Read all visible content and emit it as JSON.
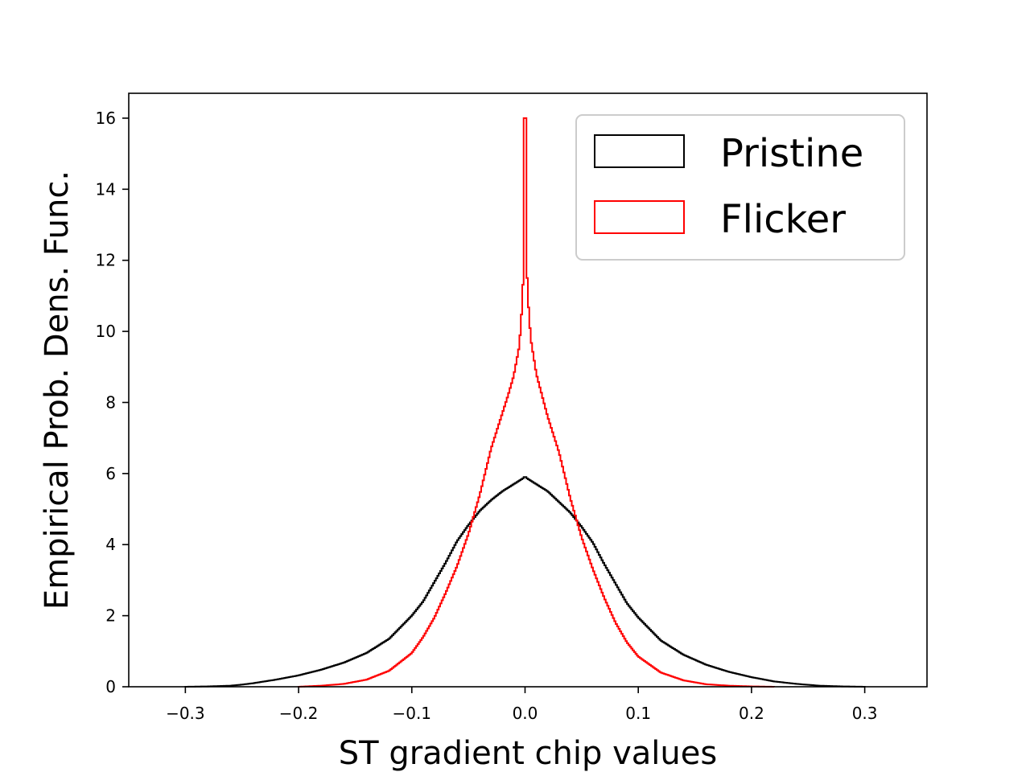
{
  "chart_data": {
    "type": "histogram",
    "xlabel": "ST gradient chip values",
    "ylabel": "Empirical Prob. Dens. Func.",
    "xlim": [
      -0.35,
      0.355
    ],
    "ylim": [
      0,
      16.7
    ],
    "xticks": [
      -0.3,
      -0.2,
      -0.1,
      0.0,
      0.1,
      0.2,
      0.3
    ],
    "xtick_labels": [
      "−0.3",
      "−0.2",
      "−0.1",
      "0.0",
      "0.1",
      "0.2",
      "0.3"
    ],
    "yticks": [
      0,
      2,
      4,
      6,
      8,
      10,
      12,
      14,
      16
    ],
    "ytick_labels": [
      "0",
      "2",
      "4",
      "6",
      "8",
      "10",
      "12",
      "14",
      "16"
    ],
    "legend_position": "top-right",
    "series": [
      {
        "name": "Pristine",
        "color": "#000000",
        "points": [
          [
            -0.3,
            0.0
          ],
          [
            -0.28,
            0.01
          ],
          [
            -0.26,
            0.03
          ],
          [
            -0.25,
            0.06
          ],
          [
            -0.24,
            0.1
          ],
          [
            -0.22,
            0.2
          ],
          [
            -0.2,
            0.32
          ],
          [
            -0.18,
            0.48
          ],
          [
            -0.16,
            0.68
          ],
          [
            -0.14,
            0.95
          ],
          [
            -0.12,
            1.35
          ],
          [
            -0.1,
            2.0
          ],
          [
            -0.09,
            2.4
          ],
          [
            -0.08,
            2.95
          ],
          [
            -0.07,
            3.5
          ],
          [
            -0.06,
            4.1
          ],
          [
            -0.05,
            4.55
          ],
          [
            -0.04,
            4.95
          ],
          [
            -0.03,
            5.25
          ],
          [
            -0.02,
            5.5
          ],
          [
            -0.01,
            5.7
          ],
          [
            -0.005,
            5.8
          ],
          [
            0.0,
            5.9
          ],
          [
            0.005,
            5.8
          ],
          [
            0.01,
            5.7
          ],
          [
            0.02,
            5.5
          ],
          [
            0.03,
            5.2
          ],
          [
            0.04,
            4.9
          ],
          [
            0.05,
            4.5
          ],
          [
            0.06,
            4.05
          ],
          [
            0.07,
            3.45
          ],
          [
            0.08,
            2.9
          ],
          [
            0.09,
            2.35
          ],
          [
            0.1,
            1.95
          ],
          [
            0.12,
            1.3
          ],
          [
            0.14,
            0.9
          ],
          [
            0.16,
            0.62
          ],
          [
            0.18,
            0.42
          ],
          [
            0.2,
            0.27
          ],
          [
            0.22,
            0.15
          ],
          [
            0.24,
            0.08
          ],
          [
            0.26,
            0.03
          ],
          [
            0.28,
            0.01
          ],
          [
            0.3,
            0.0
          ]
        ]
      },
      {
        "name": "Flicker",
        "color": "#ff0000",
        "points": [
          [
            -0.2,
            0.0
          ],
          [
            -0.18,
            0.03
          ],
          [
            -0.16,
            0.08
          ],
          [
            -0.14,
            0.2
          ],
          [
            -0.12,
            0.45
          ],
          [
            -0.1,
            0.95
          ],
          [
            -0.09,
            1.4
          ],
          [
            -0.08,
            1.95
          ],
          [
            -0.07,
            2.65
          ],
          [
            -0.06,
            3.4
          ],
          [
            -0.05,
            4.3
          ],
          [
            -0.04,
            5.4
          ],
          [
            -0.03,
            6.7
          ],
          [
            -0.02,
            7.7
          ],
          [
            -0.015,
            8.2
          ],
          [
            -0.01,
            8.75
          ],
          [
            -0.005,
            9.6
          ],
          [
            -0.002,
            11.0
          ],
          [
            0.0,
            16.0
          ],
          [
            0.002,
            11.2
          ],
          [
            0.005,
            9.8
          ],
          [
            0.01,
            8.8
          ],
          [
            0.015,
            8.2
          ],
          [
            0.02,
            7.6
          ],
          [
            0.03,
            6.6
          ],
          [
            0.04,
            5.3
          ],
          [
            0.05,
            4.2
          ],
          [
            0.06,
            3.3
          ],
          [
            0.07,
            2.5
          ],
          [
            0.08,
            1.8
          ],
          [
            0.09,
            1.25
          ],
          [
            0.1,
            0.85
          ],
          [
            0.12,
            0.4
          ],
          [
            0.14,
            0.18
          ],
          [
            0.16,
            0.07
          ],
          [
            0.18,
            0.03
          ],
          [
            0.2,
            0.01
          ],
          [
            0.22,
            0.0
          ]
        ]
      }
    ]
  }
}
